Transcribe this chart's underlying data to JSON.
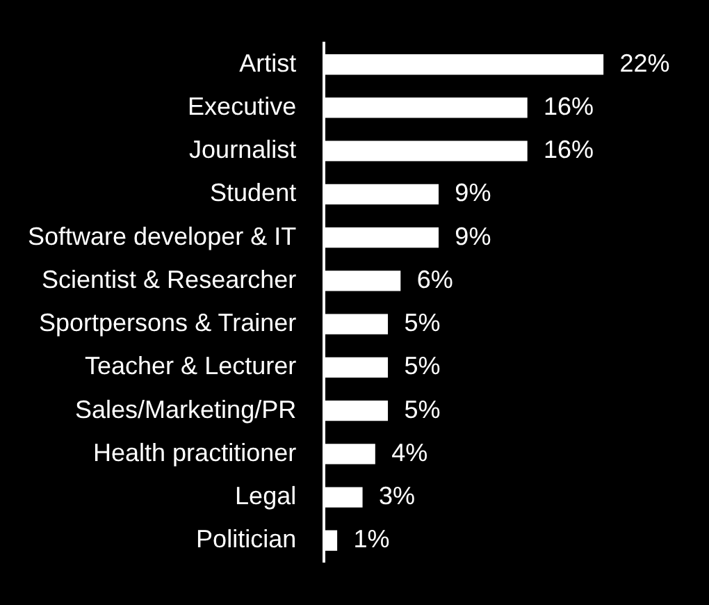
{
  "chart_data": {
    "type": "bar",
    "orientation": "horizontal",
    "categories": [
      "Artist",
      "Executive",
      "Journalist",
      "Student",
      "Software developer & IT",
      "Scientist & Researcher",
      "Sportpersons & Trainer",
      "Teacher & Lecturer",
      "Sales/Marketing/PR",
      "Health practitioner",
      "Legal",
      "Politician"
    ],
    "values": [
      22,
      16,
      16,
      9,
      9,
      6,
      5,
      5,
      5,
      4,
      3,
      1
    ],
    "value_labels": [
      "22%",
      "16%",
      "16%",
      "9%",
      "9%",
      "6%",
      "5%",
      "5%",
      "5%",
      "4%",
      "3%",
      "1%"
    ],
    "color": "#ffffff",
    "legend": false,
    "tick_labels": "y"
  }
}
